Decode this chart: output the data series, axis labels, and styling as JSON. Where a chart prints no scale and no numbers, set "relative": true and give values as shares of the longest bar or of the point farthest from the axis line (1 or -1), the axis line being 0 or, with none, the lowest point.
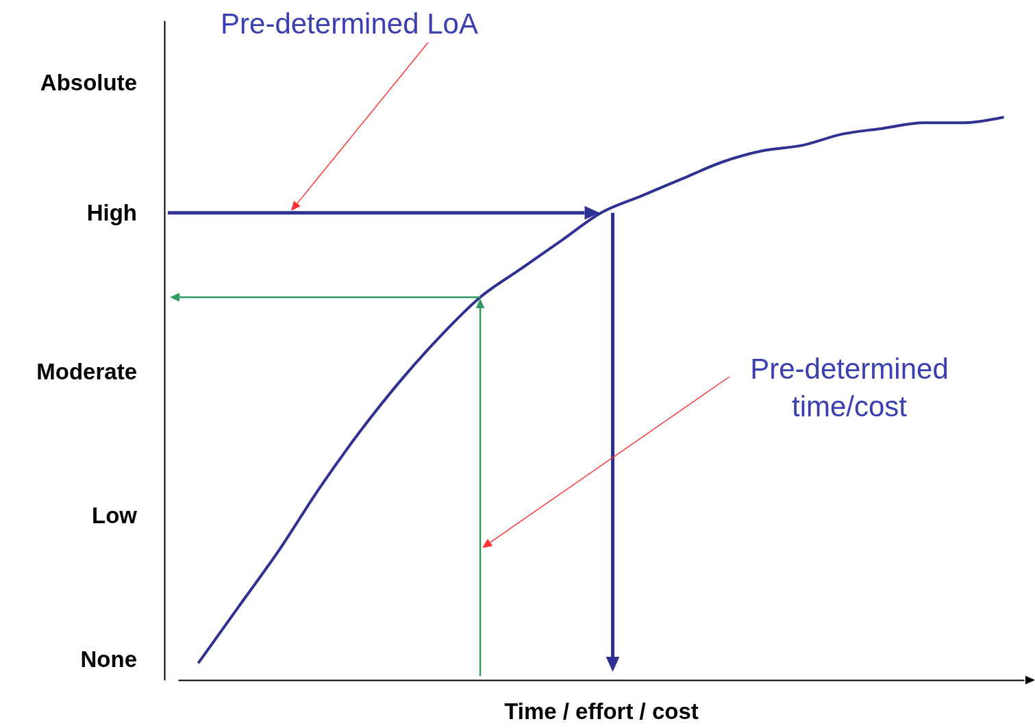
{
  "chart_data": {
    "type": "line",
    "relative": true,
    "xlabel": "Time / effort / cost",
    "annotations": [
      "Pre-determined LoA",
      "Pre-determined time/cost",
      "Absolute",
      "High",
      "Moderate",
      "Low",
      "None"
    ],
    "categories": [
      null,
      null,
      null,
      null,
      null,
      null,
      null,
      null,
      null,
      null,
      null,
      null,
      null,
      null,
      null,
      null,
      null,
      null,
      null,
      null,
      null
    ],
    "series": [
      {
        "color": "#2e3192",
        "values": [
          0.03,
          0.13,
          0.23,
          0.34,
          0.44,
          0.53,
          0.61,
          0.68,
          0.73,
          0.78,
          0.83,
          0.86,
          0.89,
          0.92,
          0.94,
          0.95,
          0.97,
          0.98,
          0.99,
          0.99,
          1
        ]
      }
    ]
  }
}
